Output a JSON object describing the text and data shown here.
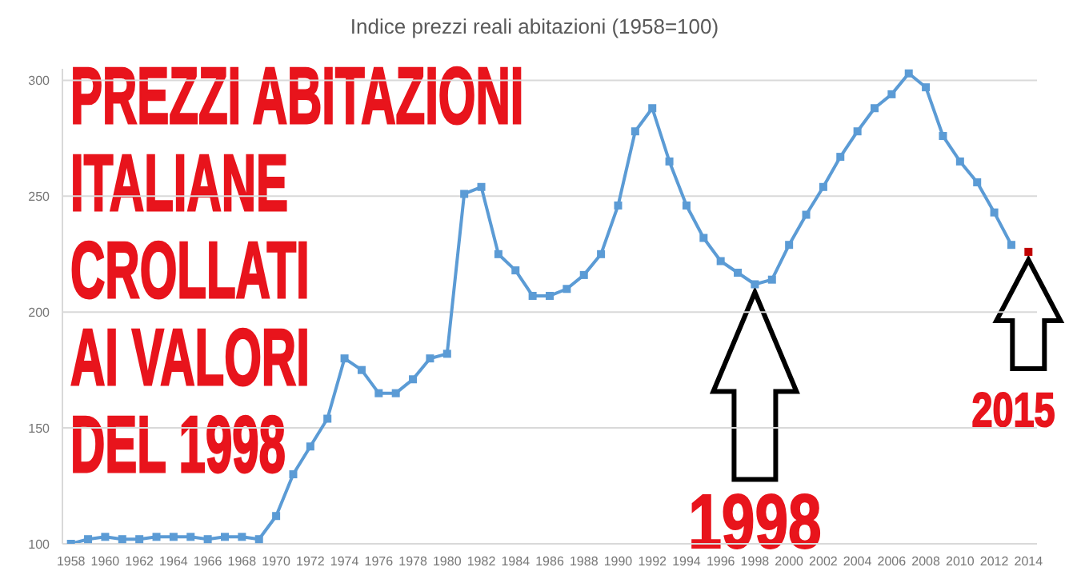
{
  "chart_data": {
    "type": "line",
    "title": "Indice prezzi reali abitazioni (1958=100)",
    "x": [
      1958,
      1959,
      1960,
      1961,
      1962,
      1963,
      1964,
      1965,
      1966,
      1967,
      1968,
      1969,
      1970,
      1971,
      1972,
      1973,
      1974,
      1975,
      1976,
      1977,
      1978,
      1979,
      1980,
      1981,
      1982,
      1983,
      1984,
      1985,
      1986,
      1987,
      1988,
      1989,
      1990,
      1991,
      1992,
      1993,
      1994,
      1995,
      1996,
      1997,
      1998,
      1999,
      2000,
      2001,
      2002,
      2003,
      2004,
      2005,
      2006,
      2007,
      2008,
      2009,
      2010,
      2011,
      2012,
      2013
    ],
    "series": [
      {
        "color": "#5b9bd5",
        "values": [
          100,
          102,
          103,
          102,
          102,
          103,
          103,
          103,
          102,
          103,
          103,
          102,
          112,
          130,
          142,
          154,
          180,
          175,
          165,
          165,
          171,
          180,
          182,
          251,
          254,
          225,
          218,
          207,
          207,
          210,
          216,
          225,
          246,
          278,
          288,
          265,
          246,
          232,
          222,
          217,
          212,
          214,
          229,
          242,
          254,
          267,
          278,
          288,
          294,
          303,
          297,
          276,
          265,
          256,
          243,
          229
        ]
      },
      {
        "color": "#c00000",
        "x": [
          2014
        ],
        "values": [
          226
        ]
      }
    ],
    "xlim": [
      1957.5,
      2014.5
    ],
    "xticks": [
      1958,
      1960,
      1962,
      1964,
      1966,
      1968,
      1970,
      1972,
      1974,
      1976,
      1978,
      1980,
      1982,
      1984,
      1986,
      1988,
      1990,
      1992,
      1994,
      1996,
      1998,
      2000,
      2002,
      2004,
      2006,
      2008,
      2010,
      2012,
      2014
    ],
    "ylim": [
      100,
      305
    ],
    "yticks": [
      100,
      150,
      200,
      250,
      300
    ],
    "grid": "y",
    "marker": "square",
    "line_style": "solid",
    "annotations": [
      "PREZZI ABITAZIONI\nITALIANE\nCROLLATI\nAI VALORI\nDEL 1998",
      {
        "text": "1998",
        "x": 1998,
        "y": 212
      },
      {
        "text": "2015",
        "x": 2014,
        "y": 226
      }
    ]
  }
}
